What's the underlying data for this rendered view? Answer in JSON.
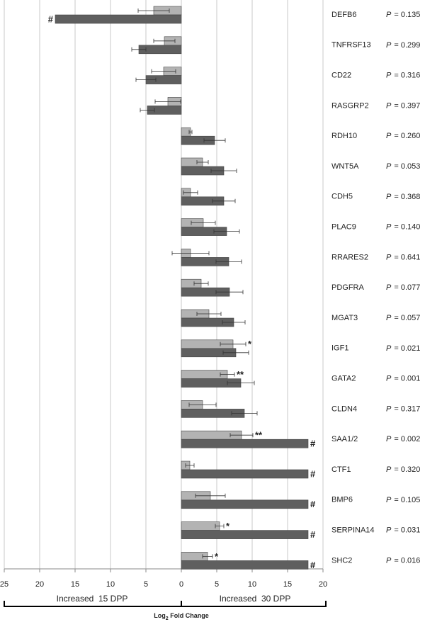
{
  "chart_data": {
    "type": "bar",
    "categories": [
      "DEFB6",
      "TNFRSF13",
      "CD22",
      "RASGRP2",
      "RDH10",
      "WNT5A",
      "CDH5",
      "PLAC9",
      "RRARES2",
      "PDGFRA",
      "MGAT3",
      "IGF1",
      "GATA2",
      "CLDN4",
      "SAA1/2",
      "CTF1",
      "BMP6",
      "SERPINA14",
      "SHC2"
    ],
    "series": [
      {
        "color": "#b3b3b3",
        "values": [
          -3.9,
          -2.4,
          -2.5,
          -1.9,
          1.3,
          3.0,
          1.3,
          3.1,
          1.3,
          2.8,
          3.9,
          7.3,
          6.5,
          3.0,
          8.5,
          1.2,
          4.1,
          5.4,
          3.7
        ],
        "errors": [
          2.2,
          1.5,
          1.7,
          1.8,
          0.2,
          0.8,
          1.0,
          1.7,
          2.6,
          1.0,
          1.7,
          1.8,
          1.0,
          1.9,
          1.6,
          0.6,
          2.1,
          0.6,
          0.7
        ],
        "markers": [
          null,
          null,
          null,
          null,
          null,
          null,
          null,
          null,
          null,
          null,
          null,
          "*",
          "**",
          null,
          "**",
          null,
          null,
          "*",
          "*"
        ]
      },
      {
        "color": "#5f5f5f",
        "values": [
          -17.8,
          -6.0,
          -5.0,
          -4.8,
          4.7,
          6.0,
          6.0,
          6.4,
          6.7,
          6.8,
          7.4,
          7.7,
          8.4,
          8.9,
          17.9,
          17.9,
          17.9,
          17.9,
          17.9
        ],
        "errors": [
          null,
          1.0,
          1.4,
          1.0,
          1.5,
          1.8,
          1.6,
          1.8,
          1.8,
          1.9,
          1.6,
          1.8,
          1.9,
          1.8,
          null,
          null,
          null,
          null,
          null
        ],
        "markers": [
          "#",
          null,
          null,
          null,
          null,
          null,
          null,
          null,
          null,
          null,
          null,
          null,
          null,
          null,
          "#",
          "#",
          "#",
          "#",
          "#"
        ]
      }
    ],
    "p_symbol": "P",
    "p_values": [
      "= 0.135",
      "= 0.299",
      "= 0.316",
      "= 0.397",
      "= 0.260",
      "= 0.053",
      "= 0.368",
      "= 0.140",
      "= 0.641",
      "= 0.077",
      "= 0.057",
      "= 0.021",
      "= 0.001",
      "= 0.317",
      "= 0.002",
      "= 0.320",
      "= 0.105",
      "= 0.031",
      "= 0.016"
    ],
    "xlim": [
      -25,
      20
    ],
    "xticks": [
      {
        "value": -25,
        "label": "25"
      },
      {
        "value": -20,
        "label": "20"
      },
      {
        "value": -15,
        "label": "15"
      },
      {
        "value": -10,
        "label": "10"
      },
      {
        "value": -5,
        "label": "5"
      },
      0,
      5,
      10,
      15,
      20
    ],
    "grid": true,
    "left_label": "Increased  15 DPP",
    "right_label": "Increased  30 DPP",
    "xlabel": "Log",
    "xlabel_sub": "2",
    "xlabel_rest": " Fold Change"
  }
}
